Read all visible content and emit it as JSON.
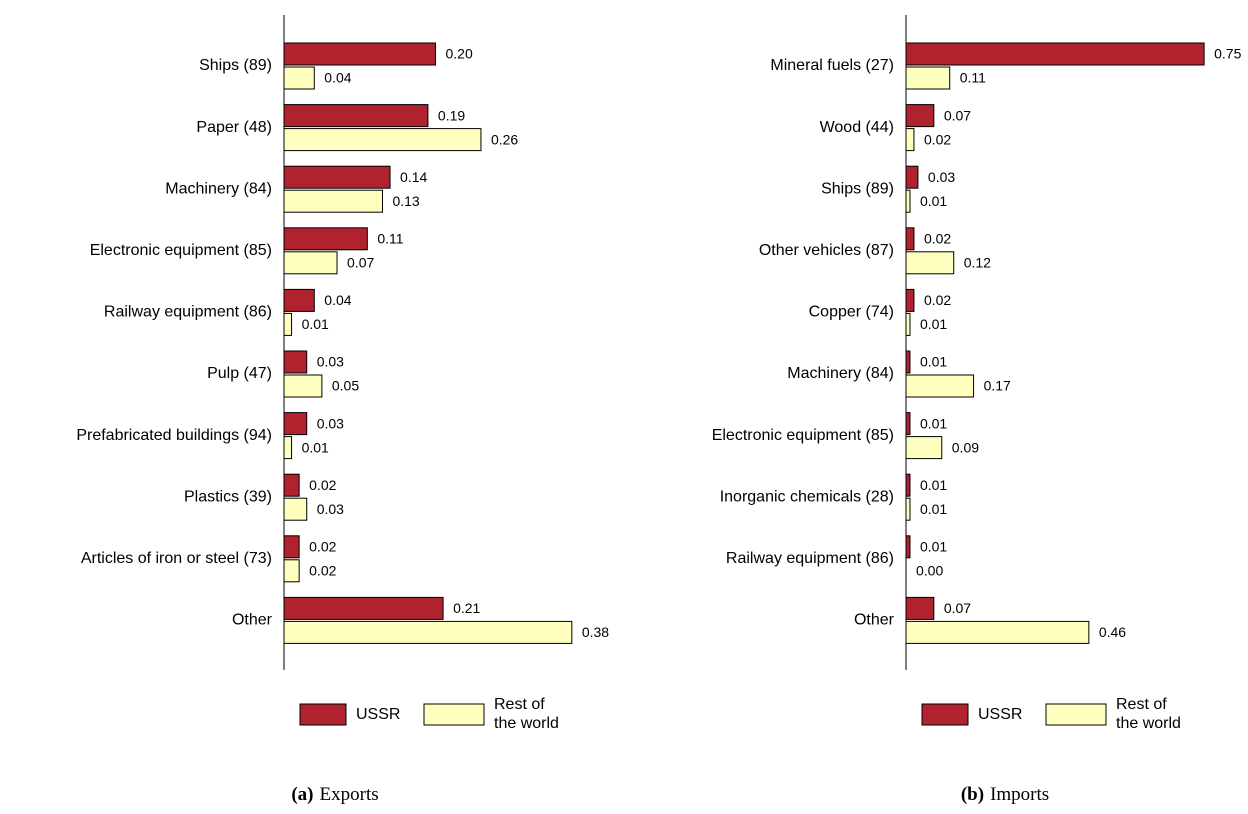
{
  "chart_data": [
    {
      "type": "barh",
      "caption_label": "(a)",
      "title": "Exports",
      "legend": "bottom",
      "categories": [
        "Ships (89)",
        "Paper (48)",
        "Machinery (84)",
        "Electronic equipment (85)",
        "Railway equipment (86)",
        "Pulp (47)",
        "Prefabricated buildings (94)",
        "Plastics (39)",
        "Articles of iron or steel (73)",
        "Other"
      ],
      "xlim": [
        0,
        0.4
      ],
      "series": [
        {
          "name": "USSR",
          "color": "#b0232e",
          "values": [
            0.2,
            0.19,
            0.14,
            0.11,
            0.04,
            0.03,
            0.03,
            0.02,
            0.02,
            0.21
          ],
          "value_labels": [
            "0.20",
            "0.19",
            "0.14",
            "0.11",
            "0.04",
            "0.03",
            "0.03",
            "0.02",
            "0.02",
            "0.21"
          ]
        },
        {
          "name": "Rest of the world",
          "color": "#ffffc0",
          "values": [
            0.04,
            0.26,
            0.13,
            0.07,
            0.01,
            0.05,
            0.01,
            0.03,
            0.02,
            0.38
          ],
          "value_labels": [
            "0.04",
            "0.26",
            "0.13",
            "0.07",
            "0.01",
            "0.05",
            "0.01",
            "0.03",
            "0.02",
            "0.38"
          ]
        }
      ]
    },
    {
      "type": "barh",
      "caption_label": "(b)",
      "title": "Imports",
      "legend": "bottom",
      "categories": [
        "Mineral fuels (27)",
        "Wood (44)",
        "Ships (89)",
        "Other vehicles (87)",
        "Copper (74)",
        "Machinery (84)",
        "Electronic equipment (85)",
        "Inorganic chemicals (28)",
        "Railway equipment (86)",
        "Other"
      ],
      "xlim": [
        0,
        0.8
      ],
      "series": [
        {
          "name": "USSR",
          "color": "#b0232e",
          "values": [
            0.75,
            0.07,
            0.03,
            0.02,
            0.02,
            0.01,
            0.01,
            0.01,
            0.01,
            0.07
          ],
          "value_labels": [
            "0.75",
            "0.07",
            "0.03",
            "0.02",
            "0.02",
            "0.01",
            "0.01",
            "0.01",
            "0.01",
            "0.07"
          ]
        },
        {
          "name": "Rest of the world",
          "color": "#ffffc0",
          "values": [
            0.11,
            0.02,
            0.01,
            0.12,
            0.01,
            0.17,
            0.09,
            0.01,
            0.0,
            0.46
          ],
          "value_labels": [
            "0.11",
            "0.02",
            "0.01",
            "0.12",
            "0.01",
            "0.17",
            "0.09",
            "0.01",
            "0.00",
            "0.46"
          ]
        }
      ]
    }
  ]
}
